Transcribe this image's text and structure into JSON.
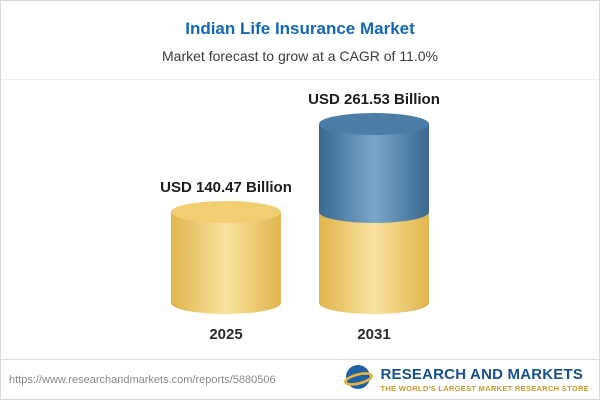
{
  "header": {
    "title": "Indian Life Insurance Market",
    "subtitle": "Market forecast to grow at a CAGR of 11.0%"
  },
  "chart_data": {
    "type": "bar",
    "variant": "stacked-cylinder",
    "categories": [
      "2025",
      "2031"
    ],
    "values": [
      140.47,
      261.53
    ],
    "value_labels": [
      "USD 140.47 Billion",
      "USD 261.53 Billion"
    ],
    "unit": "USD Billion",
    "title": "Indian Life Insurance Market",
    "cagr": "11.0%",
    "ylim": [
      0,
      280
    ],
    "legend": "none",
    "colors": {
      "base_segment": "#F0C75F",
      "growth_segment": "#4C7DA6",
      "title_text": "#1467B8"
    }
  },
  "footer": {
    "url": "https://www.researchandmarkets.com/reports/5880506",
    "logo_name": "RESEARCH AND MARKETS",
    "logo_tagline": "THE WORLD'S LARGEST MARKET RESEARCH STORE"
  }
}
